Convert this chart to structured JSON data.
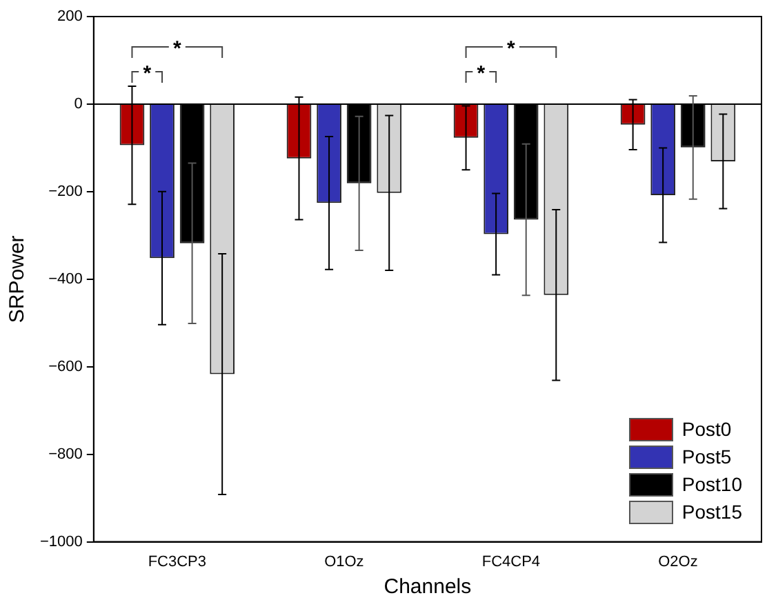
{
  "chart_data": {
    "type": "bar",
    "xlabel": "Channels",
    "ylabel": "SRPower",
    "categories": [
      "FC3CP3",
      "O1Oz",
      "FC4CP4",
      "O2Oz"
    ],
    "series": [
      {
        "name": "Post0",
        "color": "#b40000",
        "values": [
          -94,
          -124,
          -77,
          -47
        ],
        "errors": [
          135,
          140,
          73,
          57
        ]
      },
      {
        "name": "Post5",
        "color": "#3333b3",
        "values": [
          -352,
          -226,
          -297,
          -208
        ],
        "errors": [
          152,
          152,
          93,
          108
        ]
      },
      {
        "name": "Post10",
        "color": "#000000",
        "values": [
          -318,
          -181,
          -264,
          -99
        ],
        "errors": [
          183,
          153,
          173,
          118
        ]
      },
      {
        "name": "Post15",
        "color": "#d3d3d3",
        "values": [
          -617,
          -203,
          -436,
          -131
        ],
        "errors": [
          275,
          177,
          195,
          108
        ]
      }
    ],
    "ylim": [
      -1000,
      200
    ],
    "yticks": [
      -1000,
      -800,
      -600,
      -400,
      -200,
      0,
      200
    ],
    "ref_lines": [
      {
        "axis": "y",
        "value": 0,
        "color": "#000000"
      }
    ],
    "annotations": [
      "*",
      "*",
      "*",
      "*"
    ],
    "grid": false,
    "legend": "bottom right"
  }
}
